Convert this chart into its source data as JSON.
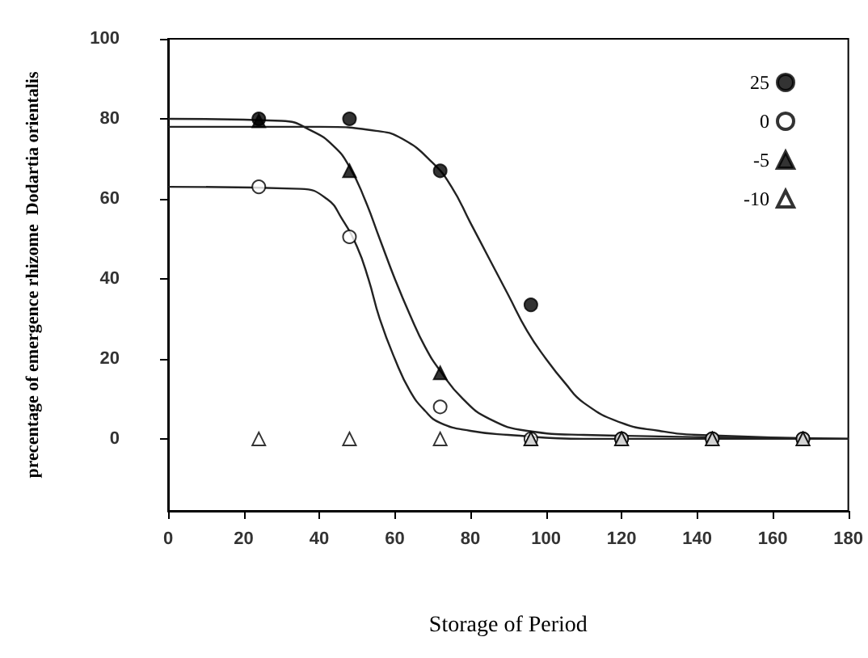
{
  "chart_data": {
    "type": "scatter",
    "xlabel": "Storage of Period",
    "ylabel": "precentage of emergence rhizome  Dodartia orientalis",
    "x": [
      24,
      48,
      72,
      96,
      120,
      144,
      168
    ],
    "xlim": [
      0,
      180
    ],
    "xticks": [
      0,
      20,
      40,
      60,
      80,
      100,
      120,
      140,
      160,
      180
    ],
    "ylim": [
      -18,
      100
    ],
    "yticks": [
      0,
      20,
      40,
      60,
      80,
      100
    ],
    "grid": false,
    "legend": "top right",
    "series": [
      {
        "name": "25",
        "color": "#000000",
        "marker": "circle",
        "values": [
          80,
          80,
          67,
          33.5,
          0,
          0,
          0
        ]
      },
      {
        "name": "0",
        "color": "#ffffff",
        "marker": "circle",
        "values": [
          63,
          50.5,
          8,
          0,
          0,
          0,
          0
        ]
      },
      {
        "name": "-5",
        "color": "#000000",
        "marker": "triangle",
        "values": [
          79.5,
          67,
          16.5,
          0,
          0,
          0,
          0
        ]
      },
      {
        "name": "-10",
        "color": "#ffffff",
        "marker": "triangle",
        "values": [
          0,
          0,
          0,
          0,
          0,
          0,
          0
        ]
      },
      {
        "type": "line",
        "color": "#222222",
        "marker": "none",
        "x": [
          0,
          40,
          55,
          62,
          70,
          75,
          80,
          85,
          90,
          95,
          100,
          105,
          110,
          120,
          130,
          140,
          180
        ],
        "values": [
          78,
          78,
          77,
          75,
          69,
          63,
          54,
          45,
          36,
          27,
          20,
          14,
          9,
          4,
          2,
          1,
          0
        ]
      },
      {
        "type": "line",
        "color": "#222222",
        "marker": "none",
        "x": [
          0,
          30,
          38,
          44,
          48,
          52,
          56,
          60,
          64,
          68,
          72,
          78,
          85,
          95,
          110,
          180
        ],
        "values": [
          80,
          79.5,
          77,
          73,
          68,
          60,
          50,
          40,
          31,
          23,
          17,
          10,
          5,
          2,
          1,
          0
        ]
      },
      {
        "type": "line",
        "color": "#222222",
        "marker": "none",
        "x": [
          0,
          35,
          42,
          46,
          50,
          53,
          56,
          60,
          64,
          68,
          72,
          80,
          90,
          110,
          180
        ],
        "values": [
          63,
          62.5,
          60,
          55,
          48,
          40,
          30,
          20,
          12,
          7,
          4,
          2,
          1,
          0,
          0
        ]
      }
    ]
  }
}
